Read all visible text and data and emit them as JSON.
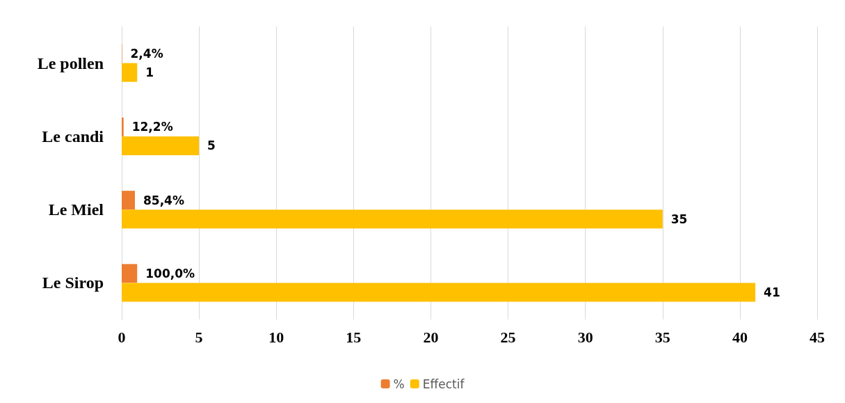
{
  "chart_data": {
    "type": "bar",
    "orientation": "horizontal",
    "categories": [
      "Le pollen",
      "Le candi",
      "Le Miel",
      "Le Sirop"
    ],
    "series": [
      {
        "name": "%",
        "color": "#ed7d31",
        "values": [
          0.024,
          0.122,
          0.854,
          1.0
        ],
        "value_labels": [
          "2,4%",
          "12,2%",
          "85,4%",
          "100,0%"
        ]
      },
      {
        "name": "Effectif",
        "color": "#ffc000",
        "values": [
          1,
          5,
          35,
          41
        ],
        "value_labels": [
          "1",
          "5",
          "35",
          "41"
        ]
      }
    ],
    "xlim": [
      0,
      45
    ],
    "xticks": [
      0,
      5,
      10,
      15,
      20,
      25,
      30,
      35,
      40,
      45
    ],
    "grid": "x",
    "legend": "bottom"
  }
}
